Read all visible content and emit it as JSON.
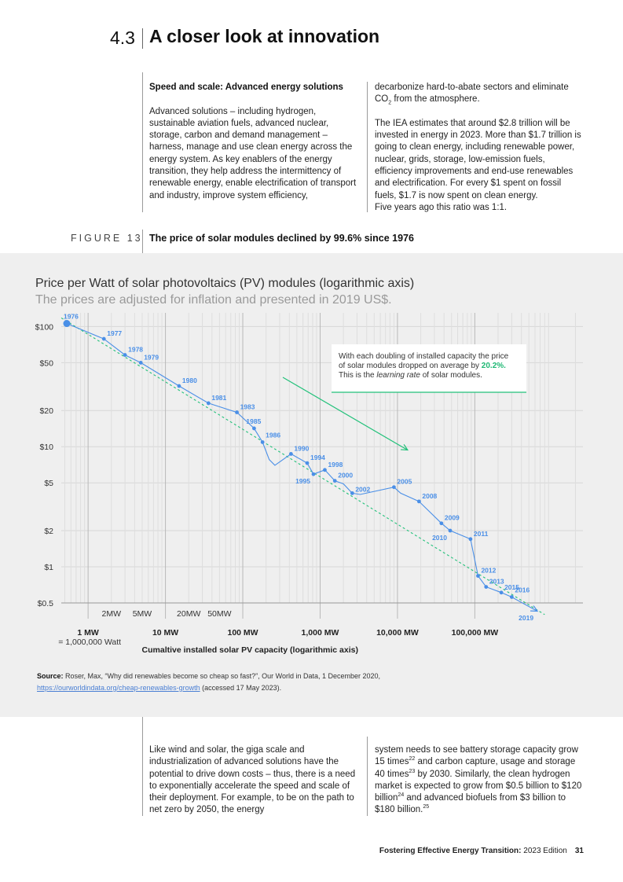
{
  "section": {
    "number": "4.3",
    "title": "A closer look at innovation"
  },
  "intro": {
    "heading": "Speed and scale: Advanced energy solutions",
    "col1_p1": "Advanced solutions – including hydrogen, sustainable aviation fuels, advanced nuclear, storage, carbon and demand management – harness, manage and use clean energy across the energy system. As key enablers of the energy transition, they help address the intermittency of renewable energy, enable electrification of transport and industry, improve system efficiency,",
    "col2_p1a": "decarbonize hard-to-abate sectors and eliminate CO",
    "col2_p1_sub": "2",
    "col2_p1b": " from the atmosphere.",
    "col2_p2": "The IEA estimates that around $2.8 trillion will be invested in energy in 2023. More than $1.7 trillion is going to clean energy, including renewable power, nuclear, grids, storage, low-emission fuels, efficiency improvements and end-use renewables and electrification. For every $1 spent on fossil fuels, $1.7 is now spent on clean energy.",
    "col2_p3": "Five years ago this ratio was 1:1."
  },
  "figure": {
    "label": "FIGURE 13",
    "title": "The price of solar modules declined by 99.6% since 1976"
  },
  "chart_data": {
    "type": "line",
    "title": "Price per Watt of solar photovoltaics (PV) modules (logarithmic axis)",
    "subtitle": "The prices are adjusted for inflation and presented in 2019 US$.",
    "xlabel": "Cumaltive installed solar PV capacity (logarithmic axis)",
    "ylabel": "",
    "x_scale": "log",
    "y_scale": "log",
    "xlim_mw": [
      0.45,
      2500000
    ],
    "ylim": [
      0.5,
      130
    ],
    "y_ticks": [
      {
        "value": 100,
        "label": "$100"
      },
      {
        "value": 50,
        "label": "$50"
      },
      {
        "value": 20,
        "label": "$20"
      },
      {
        "value": 10,
        "label": "$10"
      },
      {
        "value": 5,
        "label": "$5"
      },
      {
        "value": 2,
        "label": "$2"
      },
      {
        "value": 1,
        "label": "$1"
      },
      {
        "value": 0.5,
        "label": "$0.5"
      }
    ],
    "x_major_ticks": [
      {
        "value": 1,
        "label": "1 MW"
      },
      {
        "value": 10,
        "label": "10 MW"
      },
      {
        "value": 100,
        "label": "100 MW"
      },
      {
        "value": 1000,
        "label": "1,000 MW"
      },
      {
        "value": 10000,
        "label": "10,000 MW"
      },
      {
        "value": 100000,
        "label": "100,000 MW"
      }
    ],
    "x_minor_ticks": [
      {
        "value": 2,
        "label": "2MW"
      },
      {
        "value": 5,
        "label": "5MW"
      },
      {
        "value": 20,
        "label": "20MW"
      },
      {
        "value": 50,
        "label": "50MW"
      }
    ],
    "x_note": "= 1,000,000 Watt",
    "series": [
      {
        "name": "Solar PV module price",
        "color": "#4a8fe7",
        "points": [
          {
            "year": "1976",
            "x": 0.53,
            "y": 106,
            "labeled": true
          },
          {
            "year": "1977",
            "x": 1.6,
            "y": 79,
            "labeled": true
          },
          {
            "year": "1978",
            "x": 3.0,
            "y": 58,
            "labeled": true
          },
          {
            "year": "1979",
            "x": 4.8,
            "y": 50,
            "labeled": true
          },
          {
            "year": "1980",
            "x": 15,
            "y": 32,
            "labeled": true
          },
          {
            "year": "1981",
            "x": 36,
            "y": 23,
            "labeled": true
          },
          {
            "year": "1983",
            "x": 84,
            "y": 19.3,
            "labeled": true
          },
          {
            "year": "1985",
            "x": 140,
            "y": 14.2,
            "labeled": true
          },
          {
            "year": "1986",
            "x": 180,
            "y": 10.9,
            "labeled": true
          },
          {
            "year": "",
            "x": 220,
            "y": 7.8,
            "labeled": false
          },
          {
            "year": "",
            "x": 260,
            "y": 7.0,
            "labeled": false
          },
          {
            "year": "1990",
            "x": 420,
            "y": 8.7,
            "labeled": true
          },
          {
            "year": "1994",
            "x": 680,
            "y": 7.3,
            "labeled": true
          },
          {
            "year": "1995",
            "x": 820,
            "y": 5.9,
            "labeled": true
          },
          {
            "year": "1998",
            "x": 1150,
            "y": 6.4,
            "labeled": true
          },
          {
            "year": "2000",
            "x": 1550,
            "y": 5.2,
            "labeled": true
          },
          {
            "year": "",
            "x": 2000,
            "y": 4.9,
            "labeled": false
          },
          {
            "year": "2002",
            "x": 2600,
            "y": 4.1,
            "labeled": true
          },
          {
            "year": "",
            "x": 3300,
            "y": 4.0,
            "labeled": false
          },
          {
            "year": "2005",
            "x": 9000,
            "y": 4.6,
            "labeled": true
          },
          {
            "year": "",
            "x": 11000,
            "y": 4.1,
            "labeled": false
          },
          {
            "year": "2008",
            "x": 19000,
            "y": 3.5,
            "labeled": true
          },
          {
            "year": "2009",
            "x": 37000,
            "y": 2.3,
            "labeled": true
          },
          {
            "year": "2010",
            "x": 48000,
            "y": 2.0,
            "labeled": true
          },
          {
            "year": "2011",
            "x": 88000,
            "y": 1.7,
            "labeled": true
          },
          {
            "year": "2012",
            "x": 110000,
            "y": 0.84,
            "labeled": true
          },
          {
            "year": "2013",
            "x": 140000,
            "y": 0.68,
            "labeled": true
          },
          {
            "year": "2015",
            "x": 220000,
            "y": 0.61,
            "labeled": true
          },
          {
            "year": "2016",
            "x": 300000,
            "y": 0.56,
            "labeled": true
          },
          {
            "year": "2019",
            "x": 630000,
            "y": 0.43,
            "labeled": true
          }
        ]
      }
    ],
    "trend_line": {
      "name": "Learning curve",
      "color": "#22c17a",
      "style": "dashed",
      "from": {
        "x": 0.45,
        "y": 118
      },
      "to": {
        "x": 800000,
        "y": 0.4
      }
    },
    "annotation": {
      "line1": "With each doubling of installed capacity the price",
      "line2a": "of solar modules dropped on average by ",
      "highlight": "20.2%.",
      "line3a": "This is the ",
      "line3_italic": "learning rate",
      "line3b": " of solar modules.",
      "highlight_color": "#1fb874",
      "arrow_color": "#22c17a"
    }
  },
  "source": {
    "label": "Source:",
    "text": " Roser, Max, “Why did renewables become so cheap so fast?”, Our World in Data, 1 December 2020,",
    "link": "https://ourworldindata.org/cheap-renewables-growth",
    "accessed": " (accessed 17 May 2023)."
  },
  "outro": {
    "col1": "Like wind and solar, the giga scale and industrialization of advanced solutions have the potential to drive down costs – thus, there is a need to exponentially accelerate the speed and scale of their deployment. For example, to be on the path to net zero by 2050, the energy",
    "col2_a": "system needs to see battery storage capacity grow 15 times",
    "col2_sup1": "22",
    "col2_b": " and carbon capture, usage and storage 40 times",
    "col2_sup2": "23",
    "col2_c": " by 2030. Similarly, the clean hydrogen market is expected to grow from $0.5 billion to $120 billion",
    "col2_sup3": "24",
    "col2_d": " and advanced biofuels from $3 billion to $180 billion.",
    "col2_sup4": "25"
  },
  "footer": {
    "title": "Fostering Effective Energy Transition:",
    "edition": " 2023 Edition",
    "page": "31"
  }
}
